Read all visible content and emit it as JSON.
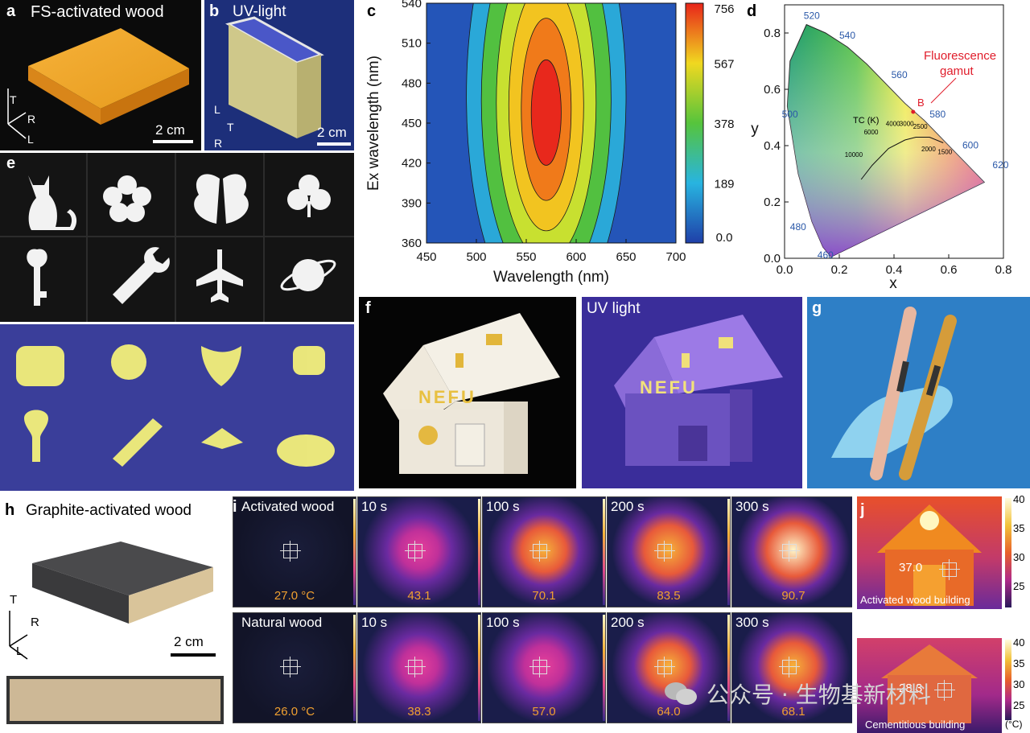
{
  "panel_a": {
    "label": "a",
    "title": "FS-activated wood",
    "scale": "2 cm",
    "axes": [
      "T",
      "R",
      "L"
    ]
  },
  "panel_b": {
    "label": "b",
    "title": "UV-light",
    "scale": "2 cm",
    "axes": [
      "L",
      "T",
      "R"
    ]
  },
  "panel_c": {
    "label": "c"
  },
  "panel_d": {
    "label": "d",
    "wavelengths": [
      "520",
      "540",
      "560",
      "580",
      "600",
      "620",
      "500",
      "480",
      "460"
    ],
    "annotation": "Fluorescence gamut",
    "point": "B",
    "tc_label": "TC (K)",
    "tc_values": [
      "10000",
      "6000",
      "4000",
      "3000",
      "2500",
      "2000",
      "1500"
    ]
  },
  "panel_e": {
    "label": "e"
  },
  "panel_f": {
    "label": "f",
    "uv_title": "UV light",
    "sign": "NEFU"
  },
  "panel_g": {
    "label": "g"
  },
  "panel_h": {
    "label": "h",
    "title": "Graphite-activated wood",
    "scale": "2 cm",
    "axes": [
      "T",
      "R",
      "L"
    ]
  },
  "panel_i": {
    "label": "i",
    "rows": [
      {
        "name": "Activated wood",
        "times": [
          "10 s",
          "100 s",
          "200 s",
          "300 s"
        ],
        "values": [
          "27.0 °C",
          "43.1",
          "70.1",
          "83.5",
          "90.7"
        ]
      },
      {
        "name": "Natural wood",
        "times": [
          "10 s",
          "100 s",
          "200 s",
          "300 s"
        ],
        "values": [
          "26.0 °C",
          "38.3",
          "57.0",
          "64.0",
          "68.1"
        ]
      }
    ]
  },
  "panel_j": {
    "label": "j",
    "top": {
      "caption": "Activated wood building",
      "value": "37.0"
    },
    "bottom": {
      "caption": "Cementitious building",
      "value": "28.3"
    },
    "ticks": [
      "40",
      "35",
      "30",
      "25"
    ],
    "unit": "(°C)"
  },
  "watermark": "公众号 · 生物基新材料",
  "chart_data": [
    {
      "type": "heatmap",
      "panel": "c",
      "xlabel": "Wavelength (nm)",
      "ylabel": "Ex wavelength (nm)",
      "x_ticks": [
        "450",
        "500",
        "550",
        "600",
        "650",
        "700"
      ],
      "y_ticks": [
        "540",
        "510",
        "480",
        "450",
        "420",
        "390",
        "360"
      ],
      "xlim": [
        450,
        700
      ],
      "ylim": [
        360,
        540
      ],
      "colorbar_ticks": [
        "756",
        "567",
        "378",
        "189",
        "0.0"
      ],
      "colorbar_range": [
        0,
        756
      ],
      "peak": {
        "x": 570,
        "y": 470
      },
      "colors": {
        "low": "#1f4fb0",
        "high": "#e0241a"
      }
    },
    {
      "type": "scatter",
      "panel": "d",
      "xlabel": "x",
      "ylabel": "y",
      "x_ticks": [
        "0.0",
        "0.2",
        "0.4",
        "0.6",
        "0.8"
      ],
      "y_ticks": [
        "0.0",
        "0.2",
        "0.4",
        "0.6",
        "0.8"
      ],
      "xlim": [
        0,
        0.8
      ],
      "ylim": [
        0,
        0.9
      ],
      "points": [
        {
          "name": "B",
          "x": 0.47,
          "y": 0.52
        }
      ]
    }
  ]
}
